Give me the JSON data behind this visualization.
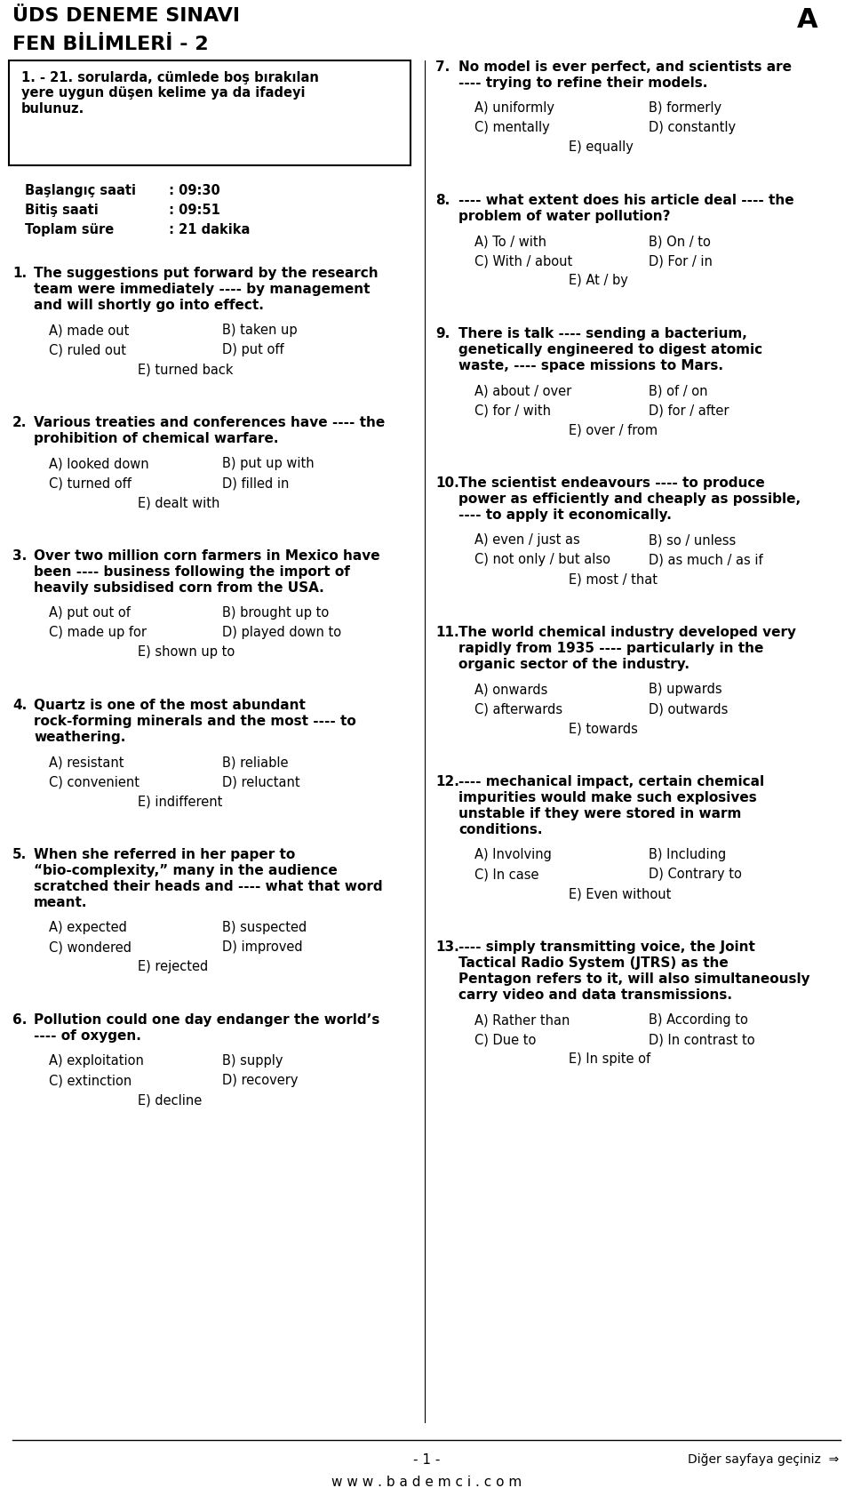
{
  "bg_color": "#ffffff",
  "text_color": "#000000",
  "title1": "ÜDS DENEME SINAVI",
  "title2": "FEN BİLİMLERİ - 2",
  "title_right": "A",
  "instruction": "1. - 21. sorularda, cümlede boş bırakılan\nyere uygun düşen kelime ya da ifadeyi\nbulunuz.",
  "time_rows": [
    [
      "Başlangıç saati",
      " : 09:30"
    ],
    [
      "Bitiş saati",
      " : 09:51"
    ],
    [
      "Toplam süre",
      " : 21 dakika"
    ]
  ],
  "left_questions": [
    {
      "num": "1.",
      "lines": [
        "The suggestions put forward by the research",
        "team were immediately ---- by management",
        "and will shortly go into effect."
      ],
      "opts": [
        [
          "A) made out",
          "B) taken up"
        ],
        [
          "C) ruled out",
          "D) put off"
        ],
        [
          "E) turned back",
          ""
        ]
      ]
    },
    {
      "num": "2.",
      "lines": [
        "Various treaties and conferences have ---- the",
        "prohibition of chemical warfare."
      ],
      "opts": [
        [
          "A) looked down",
          "B) put up with"
        ],
        [
          "C) turned off",
          "D) filled in"
        ],
        [
          "E) dealt with",
          ""
        ]
      ]
    },
    {
      "num": "3.",
      "lines": [
        "Over two million corn farmers in Mexico have",
        "been ---- business following the import of",
        "heavily subsidised corn from the USA."
      ],
      "opts": [
        [
          "A) put out of",
          "B) brought up to"
        ],
        [
          "C) made up for",
          "D) played down to"
        ],
        [
          "E) shown up to",
          ""
        ]
      ]
    },
    {
      "num": "4.",
      "lines": [
        "Quartz is one of the most abundant",
        "rock-forming minerals and the most ---- to",
        "weathering."
      ],
      "opts": [
        [
          "A) resistant",
          "B) reliable"
        ],
        [
          "C) convenient",
          "D) reluctant"
        ],
        [
          "E) indifferent",
          ""
        ]
      ]
    },
    {
      "num": "5.",
      "lines": [
        "When she referred in her paper to",
        "“bio-complexity,” many in the audience",
        "scratched their heads and ---- what that word",
        "meant."
      ],
      "opts": [
        [
          "A) expected",
          "B) suspected"
        ],
        [
          "C) wondered",
          "D) improved"
        ],
        [
          "E) rejected",
          ""
        ]
      ]
    },
    {
      "num": "6.",
      "lines": [
        "Pollution could one day endanger the world’s",
        "---- of oxygen."
      ],
      "opts": [
        [
          "A) exploitation",
          "B) supply"
        ],
        [
          "C) extinction",
          "D) recovery"
        ],
        [
          "E) decline",
          ""
        ]
      ]
    }
  ],
  "right_questions": [
    {
      "num": "7.",
      "lines": [
        "No model is ever perfect, and scientists are",
        "---- trying to refine their models."
      ],
      "opts": [
        [
          "A) uniformly",
          "B) formerly"
        ],
        [
          "C) mentally",
          "D) constantly"
        ],
        [
          "E) equally",
          ""
        ]
      ]
    },
    {
      "num": "8.",
      "lines": [
        "---- what extent does his article deal ---- the",
        "problem of water pollution?"
      ],
      "opts": [
        [
          "A) To / with",
          "B) On / to"
        ],
        [
          "C) With / about",
          "D) For / in"
        ],
        [
          "E) At / by",
          ""
        ]
      ]
    },
    {
      "num": "9.",
      "lines": [
        "There is talk ---- sending a bacterium,",
        "genetically engineered to digest atomic",
        "waste, ---- space missions to Mars."
      ],
      "opts": [
        [
          "A) about / over",
          "B) of / on"
        ],
        [
          "C) for / with",
          "D) for / after"
        ],
        [
          "E) over / from",
          ""
        ]
      ]
    },
    {
      "num": "10.",
      "lines": [
        "The scientist endeavours ---- to produce",
        "power as efficiently and cheaply as possible,",
        "---- to apply it economically."
      ],
      "opts": [
        [
          "A) even / just as",
          "B) so / unless"
        ],
        [
          "C) not only / but also",
          "D) as much / as if"
        ],
        [
          "E) most / that",
          ""
        ]
      ]
    },
    {
      "num": "11.",
      "lines": [
        "The world chemical industry developed very",
        "rapidly from 1935 ---- particularly in the",
        "organic sector of the industry."
      ],
      "opts": [
        [
          "A) onwards",
          "B) upwards"
        ],
        [
          "C) afterwards",
          "D) outwards"
        ],
        [
          "E) towards",
          ""
        ]
      ]
    },
    {
      "num": "12.",
      "lines": [
        "---- mechanical impact, certain chemical",
        "impurities would make such explosives",
        "unstable if they were stored in warm",
        "conditions."
      ],
      "opts": [
        [
          "A) Involving",
          "B) Including"
        ],
        [
          "C) In case",
          "D) Contrary to"
        ],
        [
          "E) Even without",
          ""
        ]
      ]
    },
    {
      "num": "13.",
      "lines": [
        "---- simply transmitting voice, the Joint",
        "Tactical Radio System (JTRS) as the",
        "Pentagon refers to it, will also simultaneously",
        "carry video and data transmissions."
      ],
      "opts": [
        [
          "A) Rather than",
          "B) According to"
        ],
        [
          "C) Due to",
          "D) In contrast to"
        ],
        [
          "E) In spite of",
          ""
        ]
      ]
    }
  ],
  "footer_page": "- 1 -",
  "footer_next": "Diğer sayfaya geçiniz  ⇒",
  "footer_web": "w w w . b a d e m c i . c o m"
}
